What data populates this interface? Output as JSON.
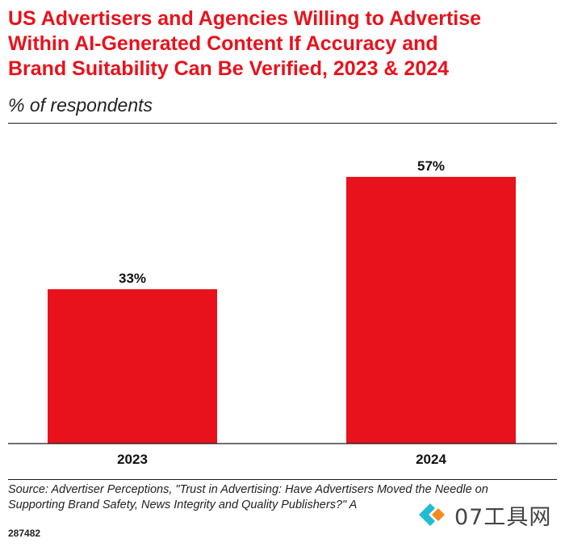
{
  "chart_data": {
    "type": "bar",
    "title_lines": [
      "US Advertisers and Agencies Willing to Advertise",
      "Within AI-Generated Content If Accuracy and",
      "Brand Suitability Can Be Verified, 2023 & 2024"
    ],
    "subtitle": "% of respondents",
    "categories": [
      "2023",
      "2024"
    ],
    "values": [
      33,
      57
    ],
    "value_labels": [
      "33%",
      "57%"
    ],
    "ylim": [
      0,
      67
    ],
    "grid": false,
    "legend": "none",
    "bar_color": "#e8121c"
  },
  "footer": {
    "source_lines": [
      "Source: Advertiser Perceptions, \"Trust in Advertising: Have Advertisers Moved the Needle on",
      "Supporting Brand Safety, News Integrity and Quality Publishers?\" A"
    ],
    "chart_id": "287482"
  },
  "watermark": {
    "text": "07工具网",
    "logo_icon": "diamond-logo-icon",
    "colors": [
      "#1fbcd2",
      "#f28c1e"
    ]
  }
}
